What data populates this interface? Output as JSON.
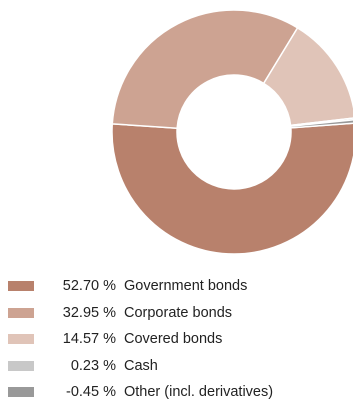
{
  "chart_data": {
    "type": "pie",
    "donut": true,
    "categories": [
      "Government bonds",
      "Corporate bonds",
      "Covered bonds",
      "Cash",
      "Other (incl. derivatives)"
    ],
    "values": [
      52.7,
      32.95,
      14.57,
      0.23,
      -0.45
    ],
    "value_labels": [
      "52.70 %",
      "32.95 %",
      "14.57 %",
      "0.23 %",
      "-0.45 %"
    ],
    "colors": [
      "#b8816c",
      "#cda392",
      "#e0c4b8",
      "#c8c8c8",
      "#999999"
    ],
    "legend_position": "bottom-left"
  }
}
